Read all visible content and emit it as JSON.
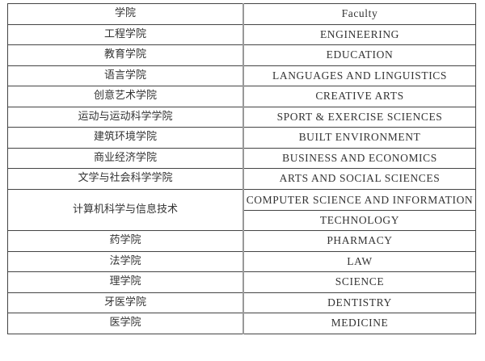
{
  "header": {
    "school": "学院",
    "faculty": "Faculty"
  },
  "rows_before": [
    {
      "school": "工程学院",
      "faculty": "ENGINEERING"
    },
    {
      "school": "教育学院",
      "faculty": "EDUCATION"
    },
    {
      "school": "语言学院",
      "faculty": "LANGUAGES AND LINGUISTICS"
    },
    {
      "school": "创意艺术学院",
      "faculty": "CREATIVE ARTS"
    },
    {
      "school": "运动与运动科学学院",
      "faculty": "SPORT & EXERCISE SCIENCES"
    },
    {
      "school": "建筑环境学院",
      "faculty": "BUILT ENVIRONMENT"
    },
    {
      "school": "商业经济学院",
      "faculty": "BUSINESS AND ECONOMICS"
    },
    {
      "school": "文学与社会科学学院",
      "faculty": "ARTS AND SOCIAL SCIENCES"
    }
  ],
  "merged_row": {
    "school": "计算机科学与信息技术",
    "faculty_line1": "COMPUTER SCIENCE AND INFORMATION",
    "faculty_line2": "TECHNOLOGY"
  },
  "rows_after": [
    {
      "school": "药学院",
      "faculty": "PHARMACY"
    },
    {
      "school": "法学院",
      "faculty": "LAW"
    },
    {
      "school": "理学院",
      "faculty": "SCIENCE"
    },
    {
      "school": "牙医学院",
      "faculty": "DENTISTRY"
    },
    {
      "school": "医学院",
      "faculty": "MEDICINE"
    }
  ]
}
